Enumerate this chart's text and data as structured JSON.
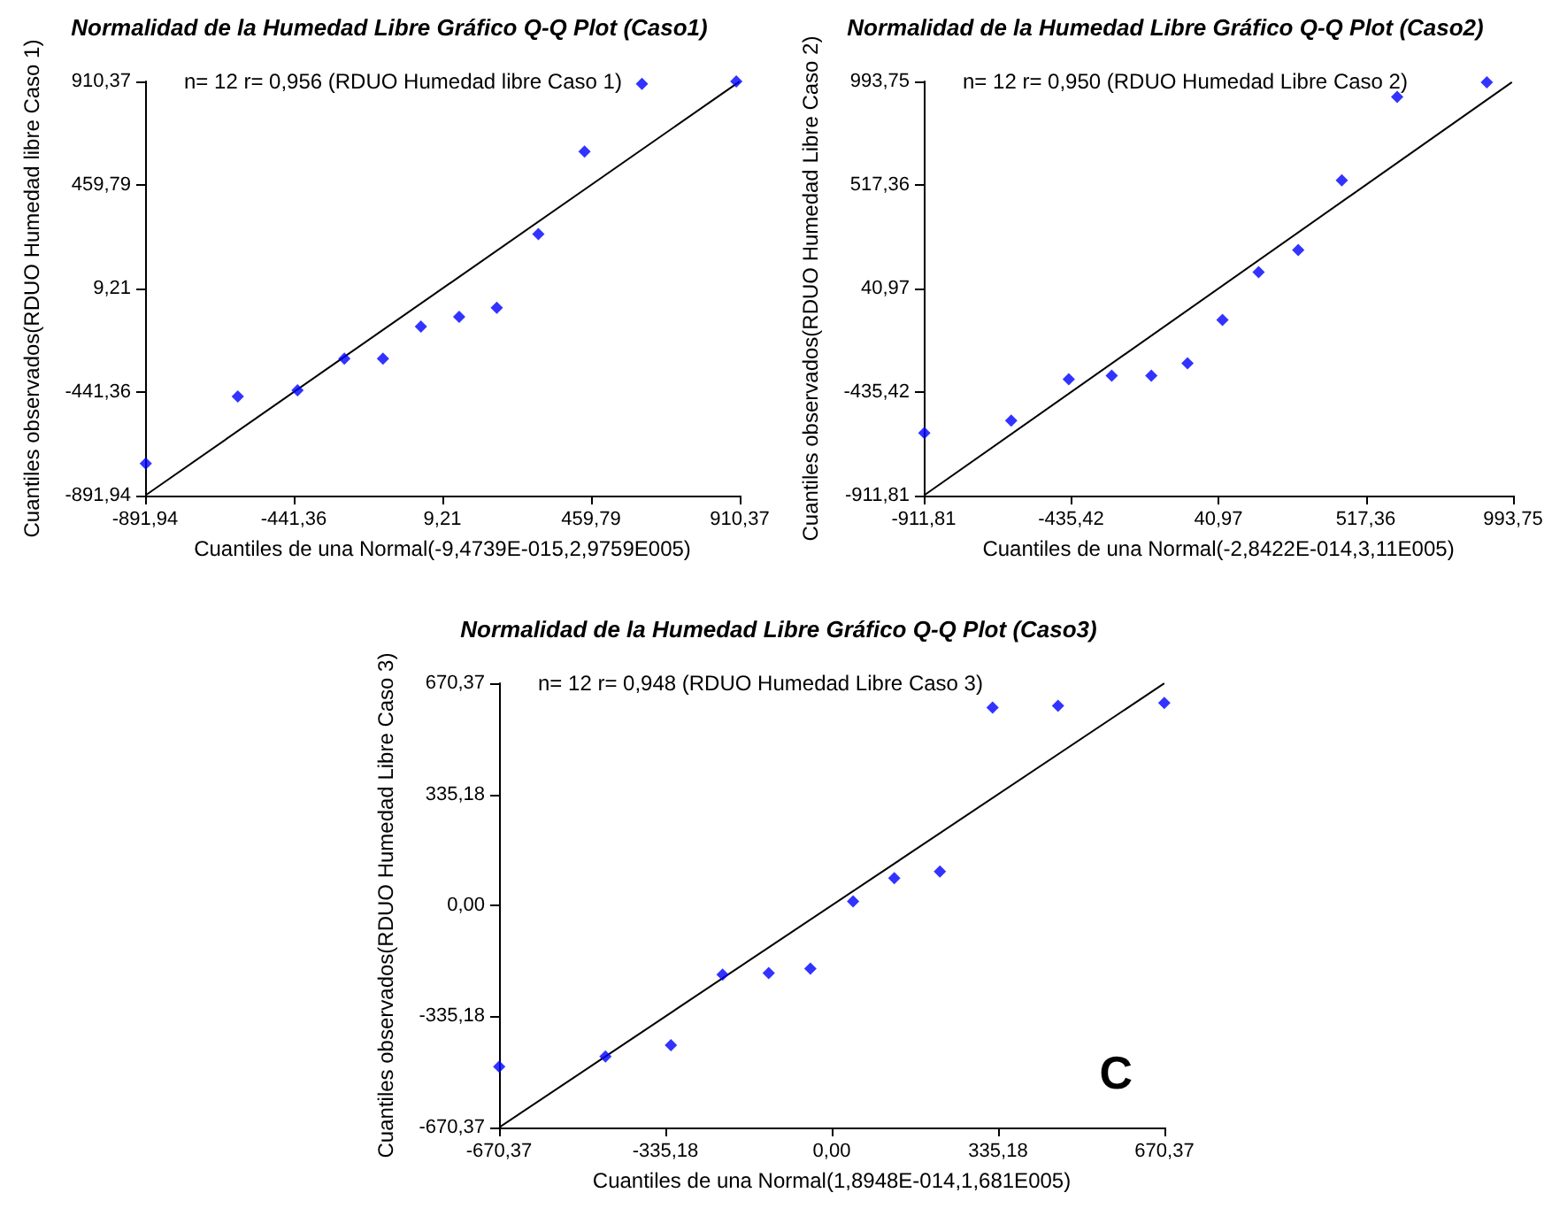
{
  "chart_data": [
    {
      "type": "scatter",
      "title": "Normalidad de la Humedad Libre Gráfico Q-Q Plot (Caso1)",
      "xlabel": "Cuantiles de una Normal(-9,4739E-015,2,9759E005)",
      "ylabel": "Cuantiles observados(RDUO Humedad libre Caso 1)",
      "annotations": [
        "n= 12 r= 0,956 (RDUO Humedad libre Caso 1)"
      ],
      "xlim": [
        -891.94,
        910.37
      ],
      "ylim": [
        -891.94,
        910.37
      ],
      "xticks": [
        {
          "value": -891.94,
          "label": "-891,94"
        },
        {
          "value": -441.36,
          "label": "-441,36"
        },
        {
          "value": 9.21,
          "label": "9,21"
        },
        {
          "value": 459.79,
          "label": "459,79"
        },
        {
          "value": 910.37,
          "label": "910,37"
        }
      ],
      "yticks": [
        {
          "value": -891.94,
          "label": "-891,94"
        },
        {
          "value": -441.36,
          "label": "-441,36"
        },
        {
          "value": 9.21,
          "label": "9,21"
        },
        {
          "value": 459.79,
          "label": "459,79"
        },
        {
          "value": 910.37,
          "label": "910,37"
        }
      ],
      "grid": false,
      "series": [
        {
          "color": "#0000ff",
          "marker": "diamond",
          "x": [
            -890,
            -611,
            -430,
            -288,
            -171,
            -56,
            60,
            174,
            300,
            440,
            614,
            900
          ],
          "values": [
            -752,
            -461,
            -434,
            -296,
            -296,
            -156,
            -114,
            -75,
            246,
            605,
            900,
            910
          ]
        },
        {
          "type": "line",
          "color": "#000000",
          "marker": "none",
          "line_style": "solid",
          "x": [
            -890,
            910
          ],
          "values": [
            -890,
            910
          ]
        }
      ]
    },
    {
      "type": "scatter",
      "title": "Normalidad de la Humedad Libre Gráfico Q-Q Plot (Caso2)",
      "xlabel": "Cuantiles de una Normal(-2,8422E-014,3,11E005)",
      "ylabel": "Cuantiles observados(RDUO Humedad Libre Caso 2)",
      "annotations": [
        "n= 12 r= 0,950 (RDUO Humedad Libre Caso 2)"
      ],
      "xlim": [
        -911.81,
        993.75
      ],
      "ylim": [
        -911.81,
        993.75
      ],
      "xticks": [
        {
          "value": -911.81,
          "label": "-911,81"
        },
        {
          "value": -435.42,
          "label": "-435,42"
        },
        {
          "value": 40.97,
          "label": "40,97"
        },
        {
          "value": 517.36,
          "label": "517,36"
        },
        {
          "value": 993.75,
          "label": "993,75"
        }
      ],
      "yticks": [
        {
          "value": -911.81,
          "label": "-911,81"
        },
        {
          "value": -435.42,
          "label": "-435,42"
        },
        {
          "value": 40.97,
          "label": "40,97"
        },
        {
          "value": 517.36,
          "label": "517,36"
        },
        {
          "value": 993.75,
          "label": "993,75"
        }
      ],
      "grid": false,
      "series": [
        {
          "color": "#0000ff",
          "marker": "diamond",
          "x": [
            -910,
            -629,
            -443,
            -304,
            -176,
            -59,
            54,
            171,
            299,
            440,
            619,
            909
          ],
          "values": [
            -624,
            -567,
            -376,
            -360,
            -360,
            -303,
            -104,
            116,
            218,
            539,
            923,
            990
          ]
        },
        {
          "type": "line",
          "color": "#000000",
          "marker": "none",
          "line_style": "solid",
          "x": [
            -910,
            990
          ],
          "values": [
            -910,
            990
          ]
        }
      ]
    },
    {
      "type": "scatter",
      "title": "Normalidad de la Humedad Libre Gráfico Q-Q Plot (Caso3)",
      "xlabel": "Cuantiles de una Normal(1,8948E-014,1,681E005)",
      "ylabel": "Cuantiles observados(RDUO Humedad Libre Caso 3)",
      "annotations": [
        "n= 12 r= 0,948 (RDUO Humedad Libre Caso 3)",
        "C"
      ],
      "xlim": [
        -670.37,
        670.37
      ],
      "ylim": [
        -670.37,
        670.37
      ],
      "xticks": [
        {
          "value": -670.37,
          "label": "-670,37"
        },
        {
          "value": -335.18,
          "label": "-335,18"
        },
        {
          "value": 0,
          "label": "0,00"
        },
        {
          "value": 335.18,
          "label": "335,18"
        },
        {
          "value": 670.37,
          "label": "670,37"
        }
      ],
      "yticks": [
        {
          "value": -670.37,
          "label": "-670,37"
        },
        {
          "value": -335.18,
          "label": "-335,18"
        },
        {
          "value": 0,
          "label": "0,00"
        },
        {
          "value": 335.18,
          "label": "335,18"
        },
        {
          "value": 670.37,
          "label": "670,37"
        }
      ],
      "grid": false,
      "series": [
        {
          "color": "#0000ff",
          "marker": "diamond",
          "x": [
            -670,
            -456,
            -324,
            -220,
            -127,
            -43,
            43,
            126,
            218,
            324,
            456,
            670
          ],
          "values": [
            -487,
            -456,
            -422,
            -209,
            -204,
            -191,
            12,
            82,
            102,
            597,
            602,
            611
          ]
        },
        {
          "type": "line",
          "color": "#000000",
          "marker": "none",
          "line_style": "solid",
          "x": [
            -670,
            670
          ],
          "values": [
            -670,
            670
          ]
        }
      ]
    }
  ]
}
